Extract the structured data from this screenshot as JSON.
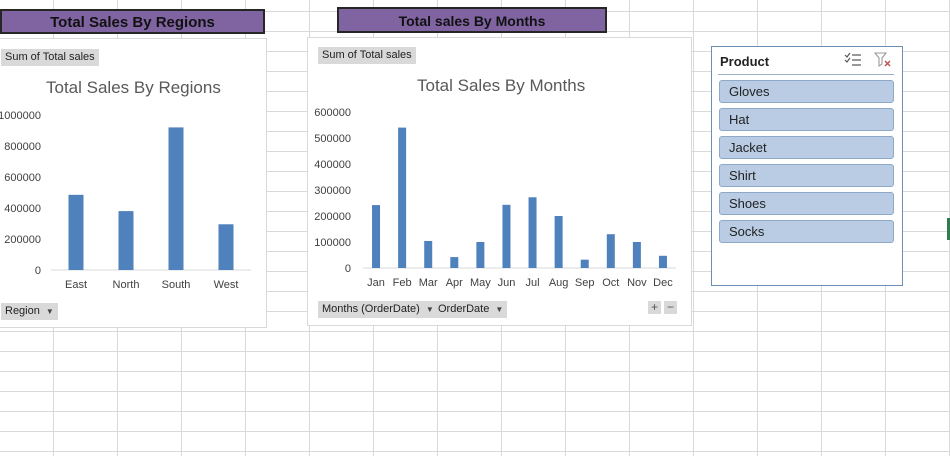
{
  "banners": {
    "regions": "Total Sales By Regions",
    "months": "Total sales By Months"
  },
  "regions_chart": {
    "value_field": "Sum of Total sales",
    "axis_field": "Region",
    "title": "Total Sales By Regions",
    "yticks": [
      "0",
      "200000",
      "400000",
      "600000",
      "800000",
      "1000000"
    ]
  },
  "months_chart": {
    "value_field": "Sum of Total sales",
    "axis_fields": [
      "Months (OrderDate)",
      "OrderDate"
    ],
    "title": "Total Sales By Months",
    "yticks": [
      "0",
      "100000",
      "200000",
      "300000",
      "400000",
      "500000",
      "600000"
    ],
    "zoom_in": "+",
    "zoom_out": "−"
  },
  "slicer": {
    "header": "Product",
    "items": [
      "Gloves",
      "Hat",
      "Jacket",
      "Shirt",
      "Shoes",
      "Socks"
    ],
    "multi_select_icon": "multi-select-icon",
    "clear_filter_icon": "clear-filter-icon"
  },
  "chart_data": [
    {
      "type": "bar",
      "title": "Total Sales By Regions",
      "categories": [
        "East",
        "North",
        "South",
        "West"
      ],
      "values": [
        485000,
        380000,
        920000,
        295000
      ],
      "ylim": [
        0,
        1000000
      ],
      "color": "#4f81bd",
      "legend": false,
      "grid": false
    },
    {
      "type": "bar",
      "title": "Total Sales By Months",
      "categories": [
        "Jan",
        "Feb",
        "Mar",
        "Apr",
        "May",
        "Jun",
        "Jul",
        "Aug",
        "Sep",
        "Oct",
        "Nov",
        "Dec"
      ],
      "values": [
        242000,
        540000,
        104000,
        42000,
        100000,
        243000,
        272000,
        200000,
        32000,
        130000,
        100000,
        47000
      ],
      "ylim": [
        0,
        600000
      ],
      "color": "#4f81bd",
      "legend": false,
      "grid": false
    }
  ]
}
